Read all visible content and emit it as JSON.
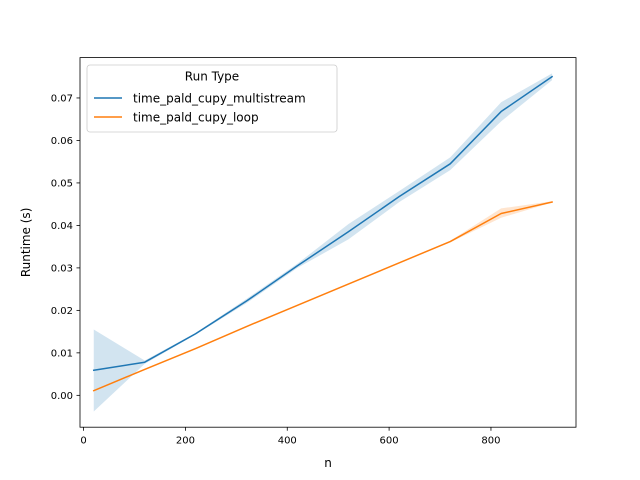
{
  "chart_data": {
    "type": "line",
    "title": "",
    "xlabel": "n",
    "ylabel": "Runtime (s)",
    "xlim": [
      -7,
      967
    ],
    "ylim": [
      -0.0075,
      0.0795
    ],
    "xticks": [
      0,
      200,
      400,
      600,
      800
    ],
    "yticks": [
      0.0,
      0.01,
      0.02,
      0.03,
      0.04,
      0.05,
      0.06,
      0.07
    ],
    "ytick_labels": [
      "0.00",
      "0.01",
      "0.02",
      "0.03",
      "0.04",
      "0.05",
      "0.06",
      "0.07"
    ],
    "grid": false,
    "legend": {
      "title": "Run Type",
      "placement": "upper-left"
    },
    "x": [
      20,
      120,
      220,
      320,
      420,
      520,
      620,
      720,
      820,
      920
    ],
    "series": [
      {
        "name": "time_pald_cupy_multistream",
        "color": "#1f77b4",
        "values": [
          0.0059,
          0.0078,
          0.0145,
          0.0222,
          0.0305,
          0.0385,
          0.0468,
          0.0545,
          0.0668,
          0.075
        ],
        "ci_low": [
          -0.0038,
          0.0074,
          0.0143,
          0.0217,
          0.03,
          0.0367,
          0.0455,
          0.053,
          0.0645,
          0.0742
        ],
        "ci_high": [
          0.0155,
          0.0082,
          0.0147,
          0.0227,
          0.031,
          0.0403,
          0.0481,
          0.056,
          0.069,
          0.0758
        ]
      },
      {
        "name": "time_pald_cupy_loop",
        "color": "#ff7f0e",
        "values": [
          0.0011,
          0.0061,
          0.011,
          0.0162,
          0.0212,
          0.0262,
          0.0312,
          0.0362,
          0.0428,
          0.0455
        ],
        "ci_low": [
          0.001,
          0.006,
          0.0109,
          0.0161,
          0.0211,
          0.0261,
          0.0311,
          0.036,
          0.0418,
          0.0454
        ],
        "ci_high": [
          0.0012,
          0.0062,
          0.0111,
          0.0163,
          0.0213,
          0.0263,
          0.0313,
          0.0364,
          0.044,
          0.0457
        ]
      }
    ]
  }
}
